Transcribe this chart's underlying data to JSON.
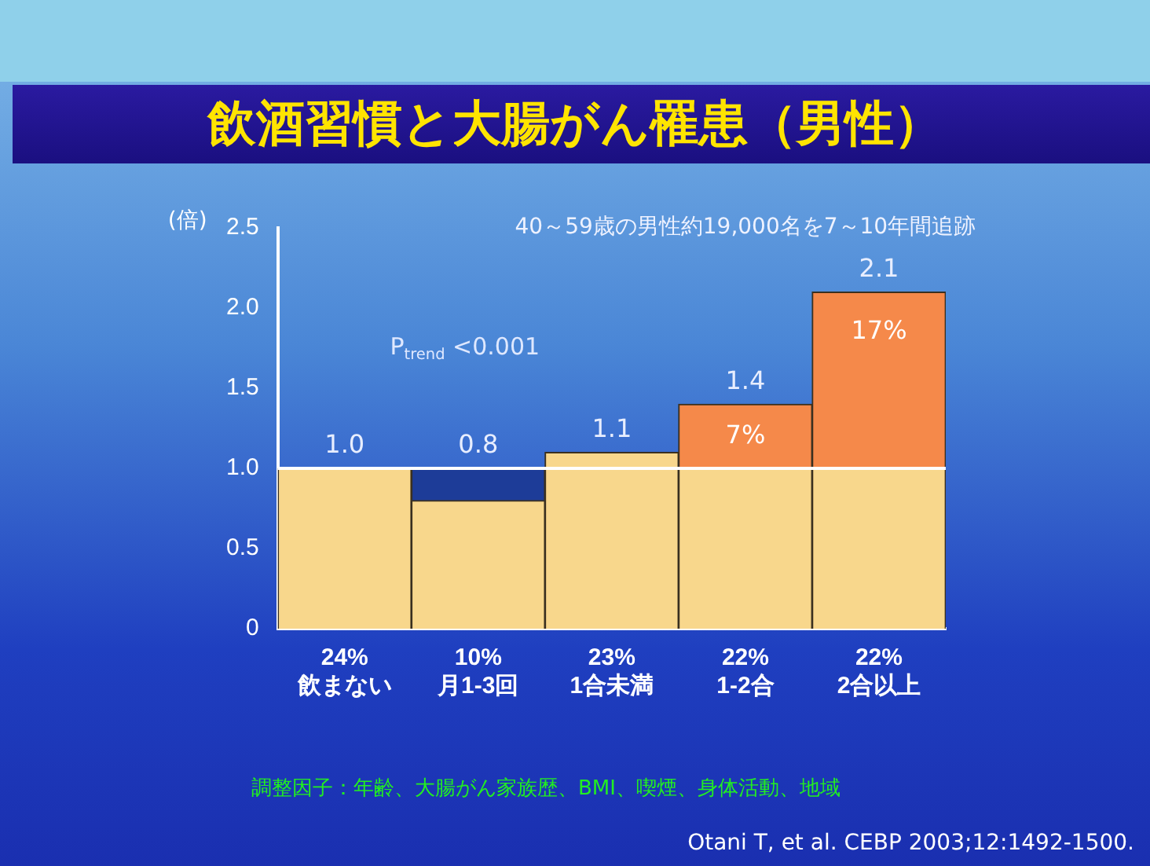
{
  "chart_data": {
    "type": "bar",
    "title": "飲酒習慣と大腸がん罹患（男性）",
    "subtitle": "40～59歳の男性約19,000名を7～10年間追跡",
    "ylabel": "(倍)",
    "categories": [
      "24%\n飲まない",
      "10%\n月1-3回",
      "23%\n1合未満",
      "22%\n1-2合",
      "22%\n2合以上"
    ],
    "stacked": true,
    "series": [
      {
        "color": "#f8d78c",
        "values": [
          1.0,
          0.8,
          1.1,
          1.0,
          1.0
        ]
      },
      {
        "color": "#1d3c98",
        "values": [
          null,
          0.2,
          null,
          null,
          null
        ]
      },
      {
        "color": "#f5894a",
        "values": [
          null,
          null,
          null,
          0.4,
          1.1
        ]
      }
    ],
    "totals": [
      "1.0",
      "0.8",
      "1.1",
      "1.4",
      "2.1"
    ],
    "ylim": [
      0,
      2.5
    ],
    "yticks": [
      0,
      0.5,
      {
        "value": 1,
        "label": "1.0"
      },
      1.5,
      {
        "value": 2,
        "label": "2.0"
      },
      2.5
    ],
    "grid": false,
    "legend": false,
    "ref_lines": [
      {
        "axis": "y",
        "value": 1.0,
        "color": "#ffffff"
      }
    ],
    "annotations": [
      "7%",
      "17%",
      "P$_{trend}$ <0.001",
      "調整因子：年齢、大腸がん家族歴、BMI、喫煙、身体活動、地域",
      "Otani T, et al. CEBP 2003;12:1492-1500."
    ]
  }
}
